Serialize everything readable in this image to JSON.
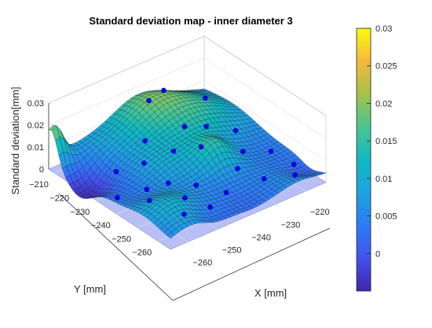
{
  "chart_data": {
    "type": "surface",
    "title": "Standard deviation map - inner diameter 3",
    "xlabel": "X [mm]",
    "ylabel": "Y [mm]",
    "zlabel": "Standard deviation[mm]",
    "x_ticks": [
      -260,
      -250,
      -240,
      -230,
      -220
    ],
    "y_ticks": [
      -260,
      -250,
      -240,
      -230,
      -220,
      -210
    ],
    "z_ticks": [
      "0",
      "0.01",
      "0.02",
      "0.03"
    ],
    "xlim": [
      -266,
      -213
    ],
    "ylim": [
      -266,
      -207
    ],
    "zlim": [
      -0.005,
      0.03
    ],
    "colorbar": {
      "ticks": [
        "0",
        "0.005",
        "0.01",
        "0.015",
        "0.02",
        "0.025",
        "0.03"
      ],
      "range": [
        -0.005,
        0.03
      ],
      "colormap": "parula"
    },
    "grid": true,
    "measurement_points_marker_color": "#0000ff",
    "surface_edge_color": "#1a1a1a",
    "plane_color": "#aab4f2"
  }
}
